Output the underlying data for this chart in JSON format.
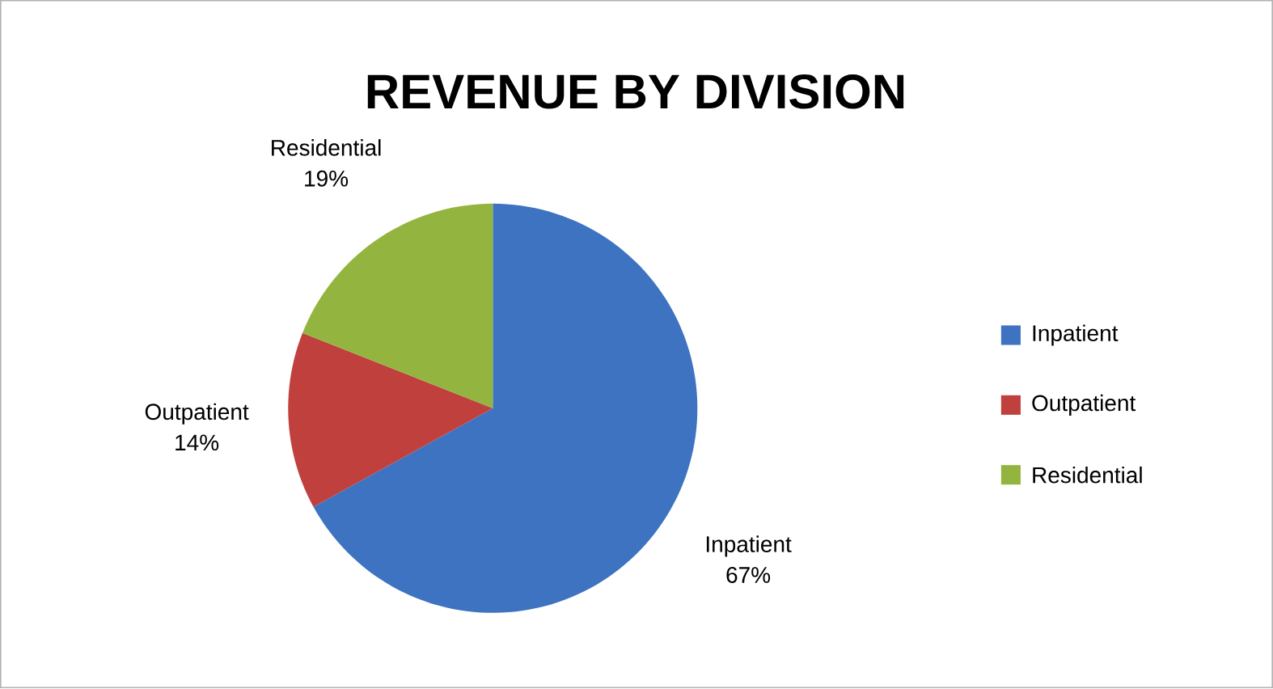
{
  "chart_data": {
    "type": "pie",
    "title": "REVENUE BY DIVISION",
    "categories": [
      "Inpatient",
      "Outpatient",
      "Residential"
    ],
    "values": [
      67,
      14,
      19
    ],
    "value_labels": [
      "67%",
      "14%",
      "19%"
    ],
    "colors": [
      "#3d73c0",
      "#c0403e",
      "#93b53f"
    ],
    "legend": "right"
  }
}
